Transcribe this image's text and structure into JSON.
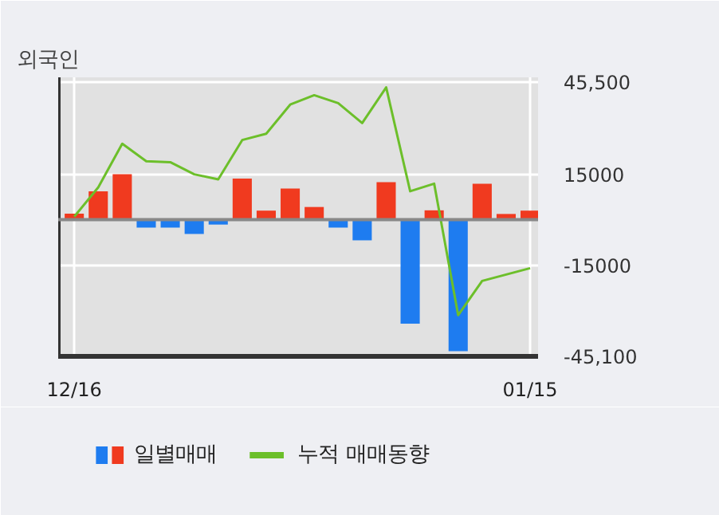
{
  "chart_data": {
    "type": "bar",
    "title": "외국인",
    "categories": [
      "12/16",
      null,
      null,
      null,
      null,
      null,
      null,
      null,
      null,
      null,
      null,
      null,
      null,
      null,
      null,
      null,
      null,
      null,
      null,
      "01/15"
    ],
    "series": [
      {
        "name": "일별매매",
        "values": [
          2000,
          9400,
          15000,
          -2600,
          -2600,
          -4700,
          -1600,
          13600,
          3000,
          10300,
          4200,
          -2600,
          -6800,
          12400,
          -34300,
          3100,
          -43400,
          11900,
          1900,
          3000
        ],
        "colors": [
          "#f03a1f",
          "#f03a1f",
          "#f03a1f",
          "#1e7cf0",
          "#1e7cf0",
          "#1e7cf0",
          "#1e7cf0",
          "#f03a1f",
          "#f03a1f",
          "#f03a1f",
          "#f03a1f",
          "#1e7cf0",
          "#1e7cf0",
          "#f03a1f",
          "#1e7cf0",
          "#f03a1f",
          "#1e7cf0",
          "#f03a1f",
          "#f03a1f",
          "#f03a1f"
        ]
      },
      {
        "name": "누적 매매동향",
        "type": "line",
        "color": "#6cbf2a",
        "values": [
          1000,
          10700,
          25100,
          19300,
          19000,
          15000,
          13300,
          26300,
          28400,
          38000,
          41100,
          38500,
          31900,
          43700,
          9400,
          11900,
          -31500,
          -20200,
          -18100,
          -16000
        ]
      }
    ],
    "ylim": [
      -45100,
      47000
    ],
    "yticks": [
      {
        "value": 45500,
        "label": "45,500"
      },
      15000,
      {
        "value": -15000,
        "label": "-15000"
      },
      {
        "value": -45100,
        "label": "-45,100"
      }
    ],
    "grid": true,
    "legend": "bottom"
  }
}
